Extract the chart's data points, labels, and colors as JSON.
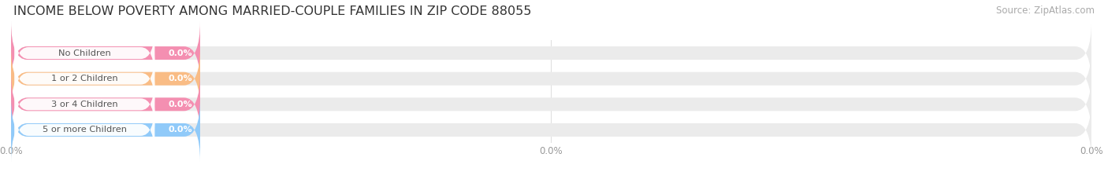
{
  "title": "INCOME BELOW POVERTY AMONG MARRIED-COUPLE FAMILIES IN ZIP CODE 88055",
  "source": "Source: ZipAtlas.com",
  "categories": [
    "No Children",
    "1 or 2 Children",
    "3 or 4 Children",
    "5 or more Children"
  ],
  "values": [
    0.0,
    0.0,
    0.0,
    0.0
  ],
  "bar_colors": [
    "#f48fb1",
    "#f9bc85",
    "#f48fb1",
    "#90caf9"
  ],
  "bg_color": "#ffffff",
  "title_fontsize": 11.5,
  "source_fontsize": 8.5,
  "figsize": [
    14.06,
    2.33
  ],
  "dpi": 100
}
